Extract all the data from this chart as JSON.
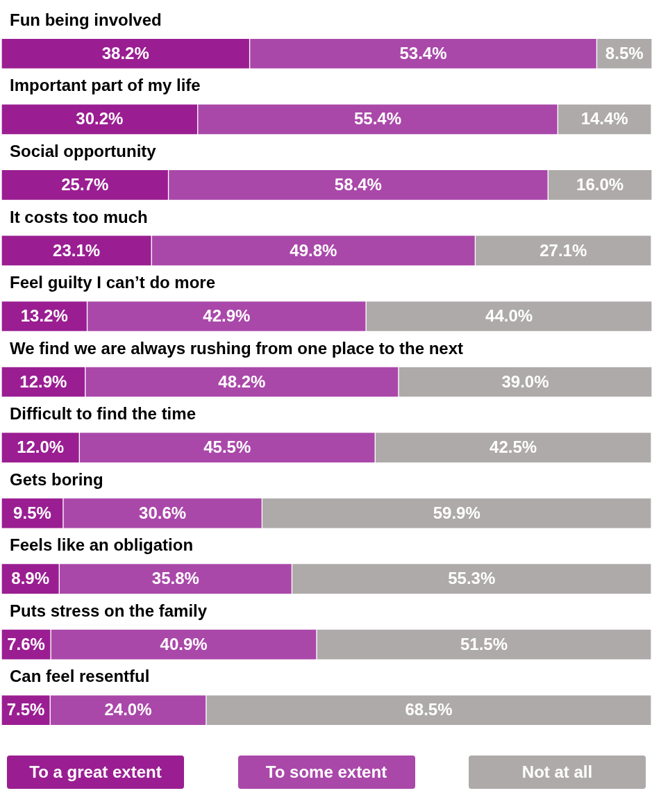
{
  "chart_data": {
    "type": "bar",
    "orientation": "horizontal",
    "stacked": true,
    "legend": "bottom",
    "tick_labels": false,
    "xlim": [
      0,
      100.1
    ],
    "categories": [
      "Fun being involved",
      "Important part of my life",
      "Social opportunity",
      "It costs too much",
      "Feel guilty I can’t do more",
      "We find we are always rushing from one place to the next",
      "Difficult to find the time",
      "Gets boring",
      "Feels like an obligation",
      "Puts stress on the family",
      "Can feel resentful"
    ],
    "series": [
      {
        "name": "To a great extent",
        "color": "#9a1e92",
        "values": [
          38.2,
          30.2,
          25.7,
          23.1,
          13.2,
          12.9,
          12.0,
          9.5,
          8.9,
          7.6,
          7.5
        ],
        "value_labels": [
          "38.2%",
          "30.2%",
          "25.7%",
          "23.1%",
          "13.2%",
          "12.9%",
          "12.0%",
          "9.5%",
          "8.9%",
          "7.6%",
          "7.5%"
        ]
      },
      {
        "name": "To some extent",
        "color": "#aa48aa",
        "values": [
          53.4,
          55.4,
          58.4,
          49.8,
          42.9,
          48.2,
          45.5,
          30.6,
          35.8,
          40.9,
          24.0
        ],
        "value_labels": [
          "53.4%",
          "55.4%",
          "58.4%",
          "49.8%",
          "42.9%",
          "48.2%",
          "45.5%",
          "30.6%",
          "35.8%",
          "40.9%",
          "24.0%"
        ]
      },
      {
        "name": "Not at all",
        "color": "#aeaaaa",
        "values": [
          8.5,
          14.4,
          16.0,
          27.1,
          44.0,
          39.0,
          42.5,
          59.9,
          55.3,
          51.5,
          68.5
        ],
        "value_labels": [
          "8.5%",
          "14.4%",
          "16.0%",
          "27.1%",
          "44.0%",
          "39.0%",
          "42.5%",
          "59.9%",
          "55.3%",
          "51.5%",
          "68.5%"
        ]
      }
    ]
  }
}
